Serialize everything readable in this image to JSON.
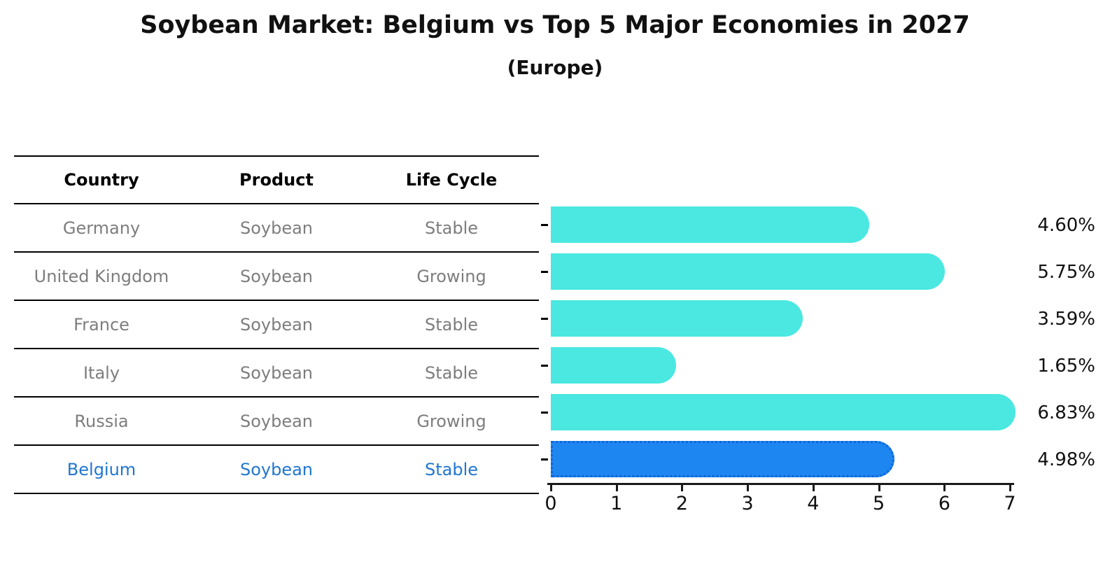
{
  "title": "Soybean Market: Belgium vs Top 5 Major Economies in 2027",
  "subtitle": "(Europe)",
  "table": {
    "headers": [
      "Country",
      "Product",
      "Life Cycle"
    ],
    "rows": [
      {
        "country": "Germany",
        "product": "Soybean",
        "life_cycle": "Stable",
        "highlight": false
      },
      {
        "country": "United Kingdom",
        "product": "Soybean",
        "life_cycle": "Growing",
        "highlight": false
      },
      {
        "country": "France",
        "product": "Soybean",
        "life_cycle": "Stable",
        "highlight": false
      },
      {
        "country": "Italy",
        "product": "Soybean",
        "life_cycle": "Stable",
        "highlight": false
      },
      {
        "country": "Russia",
        "product": "Soybean",
        "life_cycle": "Growing",
        "highlight": false
      },
      {
        "country": "Belgium",
        "product": "Soybean",
        "life_cycle": "Stable",
        "highlight": true
      }
    ]
  },
  "chart_data": {
    "type": "bar",
    "orientation": "horizontal",
    "title": "Soybean Market: Belgium vs Top 5 Major Economies in 2027 (Europe)",
    "categories": [
      "Germany",
      "United Kingdom",
      "France",
      "Italy",
      "Russia",
      "Belgium"
    ],
    "values": [
      4.6,
      5.75,
      3.59,
      1.65,
      6.83,
      4.98
    ],
    "value_labels": [
      "4.60%",
      "5.75%",
      "3.59%",
      "1.65%",
      "6.83%",
      "4.98%"
    ],
    "highlight_index": 5,
    "xlim": [
      0,
      7
    ],
    "xticks": [
      "0",
      "1",
      "2",
      "3",
      "4",
      "5",
      "6",
      "7"
    ],
    "grid": false,
    "legend": false,
    "bar_color": "#4ae8e1",
    "highlight_color": "#1e86f0",
    "highlight_edge_color": "#0e66d8",
    "label_color": "#111111",
    "muted_text_color": "#7d7d7d",
    "highlight_text_color": "#2176d2"
  }
}
